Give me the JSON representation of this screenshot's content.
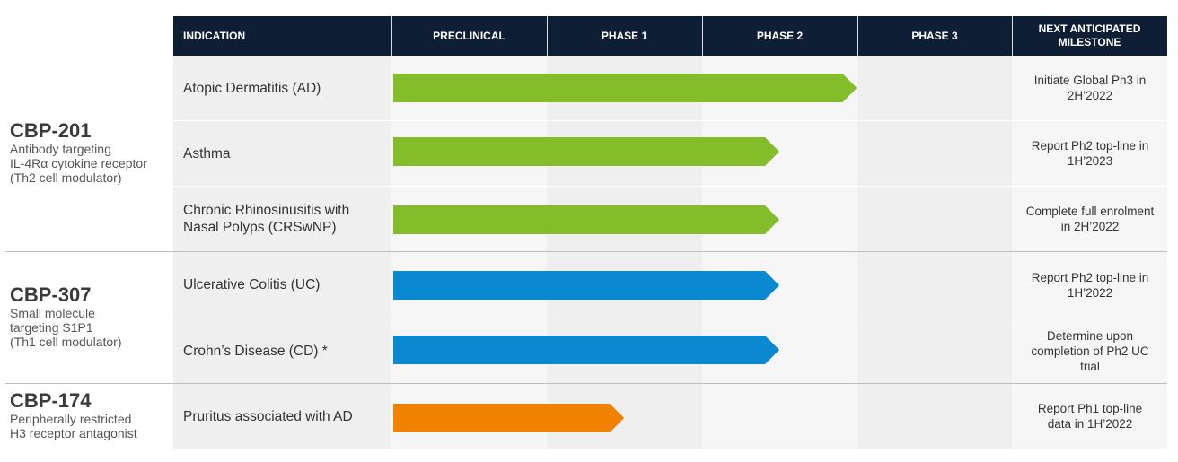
{
  "chart_data": {
    "type": "bar",
    "headers": {
      "indication": "INDICATION",
      "stages": [
        "PRECLINICAL",
        "PHASE 1",
        "PHASE 2",
        "PHASE 3"
      ],
      "milestone": "NEXT ANTICIPATED MILESTONE"
    },
    "programs": [
      {
        "name": "CBP-201",
        "description": "Antibody targeting\nIL-4Rα cytokine receptor\n(Th2 cell modulator)"
      },
      {
        "name": "CBP-307",
        "description": "Small molecule\ntargeting S1P1\n(Th1 cell modulator)"
      },
      {
        "name": "CBP-174",
        "description": "Peripherally restricted\nH3 receptor antagonist"
      }
    ],
    "rows": [
      {
        "program": "CBP-201",
        "indication": "Atopic Dermatitis (AD)",
        "progress_stages": 3.0,
        "color": "#84bd2a",
        "milestone": "Initiate Global Ph3 in 2H’2022"
      },
      {
        "program": "CBP-201",
        "indication": "Asthma",
        "progress_stages": 2.5,
        "color": "#84bd2a",
        "milestone": "Report Ph2 top-line in 1H’2023"
      },
      {
        "program": "CBP-201",
        "indication": "Chronic Rhinosinusitis with Nasal Polyps (CRSwNP)",
        "progress_stages": 2.5,
        "color": "#84bd2a",
        "milestone": "Complete full enrolment in 2H’2022"
      },
      {
        "program": "CBP-307",
        "indication": "Ulcerative Colitis (UC)",
        "progress_stages": 2.5,
        "color": "#0a88d0",
        "milestone": "Report Ph2 top-line in 1H’2022"
      },
      {
        "program": "CBP-307",
        "indication": "Crohn’s Disease (CD) *",
        "progress_stages": 2.5,
        "color": "#0a88d0",
        "milestone": "Determine upon completion of Ph2 UC trial"
      },
      {
        "program": "CBP-174",
        "indication": "Pruritus associated with AD",
        "progress_stages": 1.5,
        "color": "#f08200",
        "milestone": "Report Ph1 top-line data in 1H’2022"
      }
    ]
  }
}
